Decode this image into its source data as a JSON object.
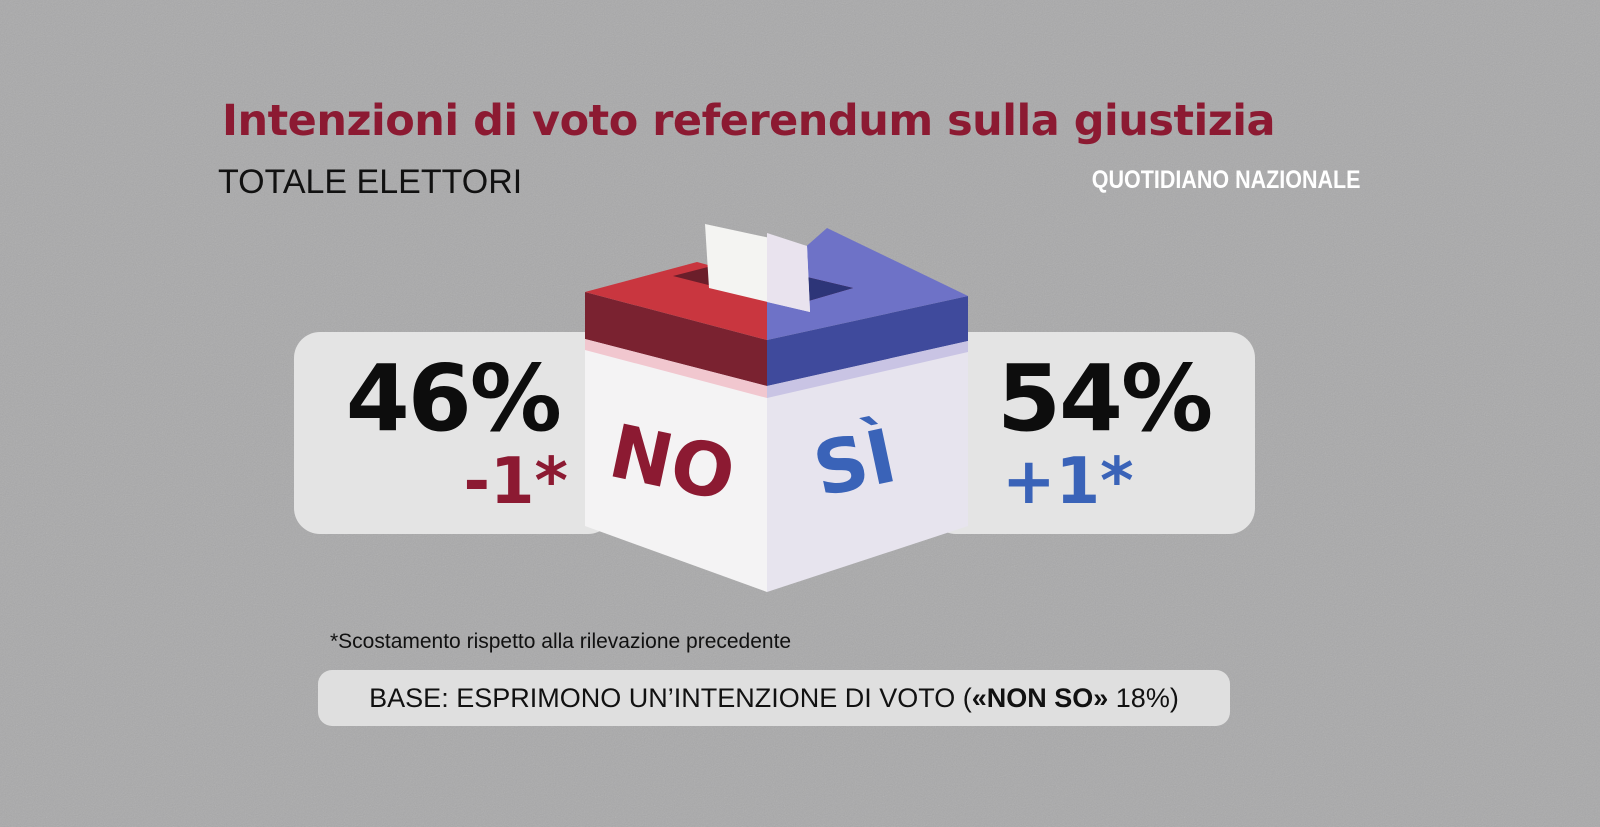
{
  "header": {
    "title": "Intenzioni di voto referendum sulla giustizia",
    "subtitle": "TOTALE ELETTORI",
    "source": "QUOTIDIANO NAZIONALE"
  },
  "colors": {
    "background": "#a9a9aa",
    "no_red": "#8c1a32",
    "si_blue": "#3a63b8",
    "panel": "#e4e4e4"
  },
  "chart_data": {
    "type": "comparison",
    "categories": [
      "NO",
      "SÌ"
    ],
    "values": [
      46,
      54
    ],
    "value_labels": [
      "46%",
      "54%"
    ],
    "changes": [
      -1,
      1
    ],
    "change_labels": [
      "-1*",
      "+1*"
    ],
    "unit": "%",
    "title": "Intenzioni di voto referendum sulla giustizia",
    "subtitle": "TOTALE ELETTORI"
  },
  "ballot_box": {
    "no_label": "NO",
    "si_label": "SÌ"
  },
  "footnote": "*Scostamento rispetto alla rilevazione precedente",
  "base": {
    "prefix": "BASE: ESPRIMONO UN’INTENZIONE DI VOTO (",
    "bold": "«NON SO»",
    "suffix": " 18%)"
  }
}
